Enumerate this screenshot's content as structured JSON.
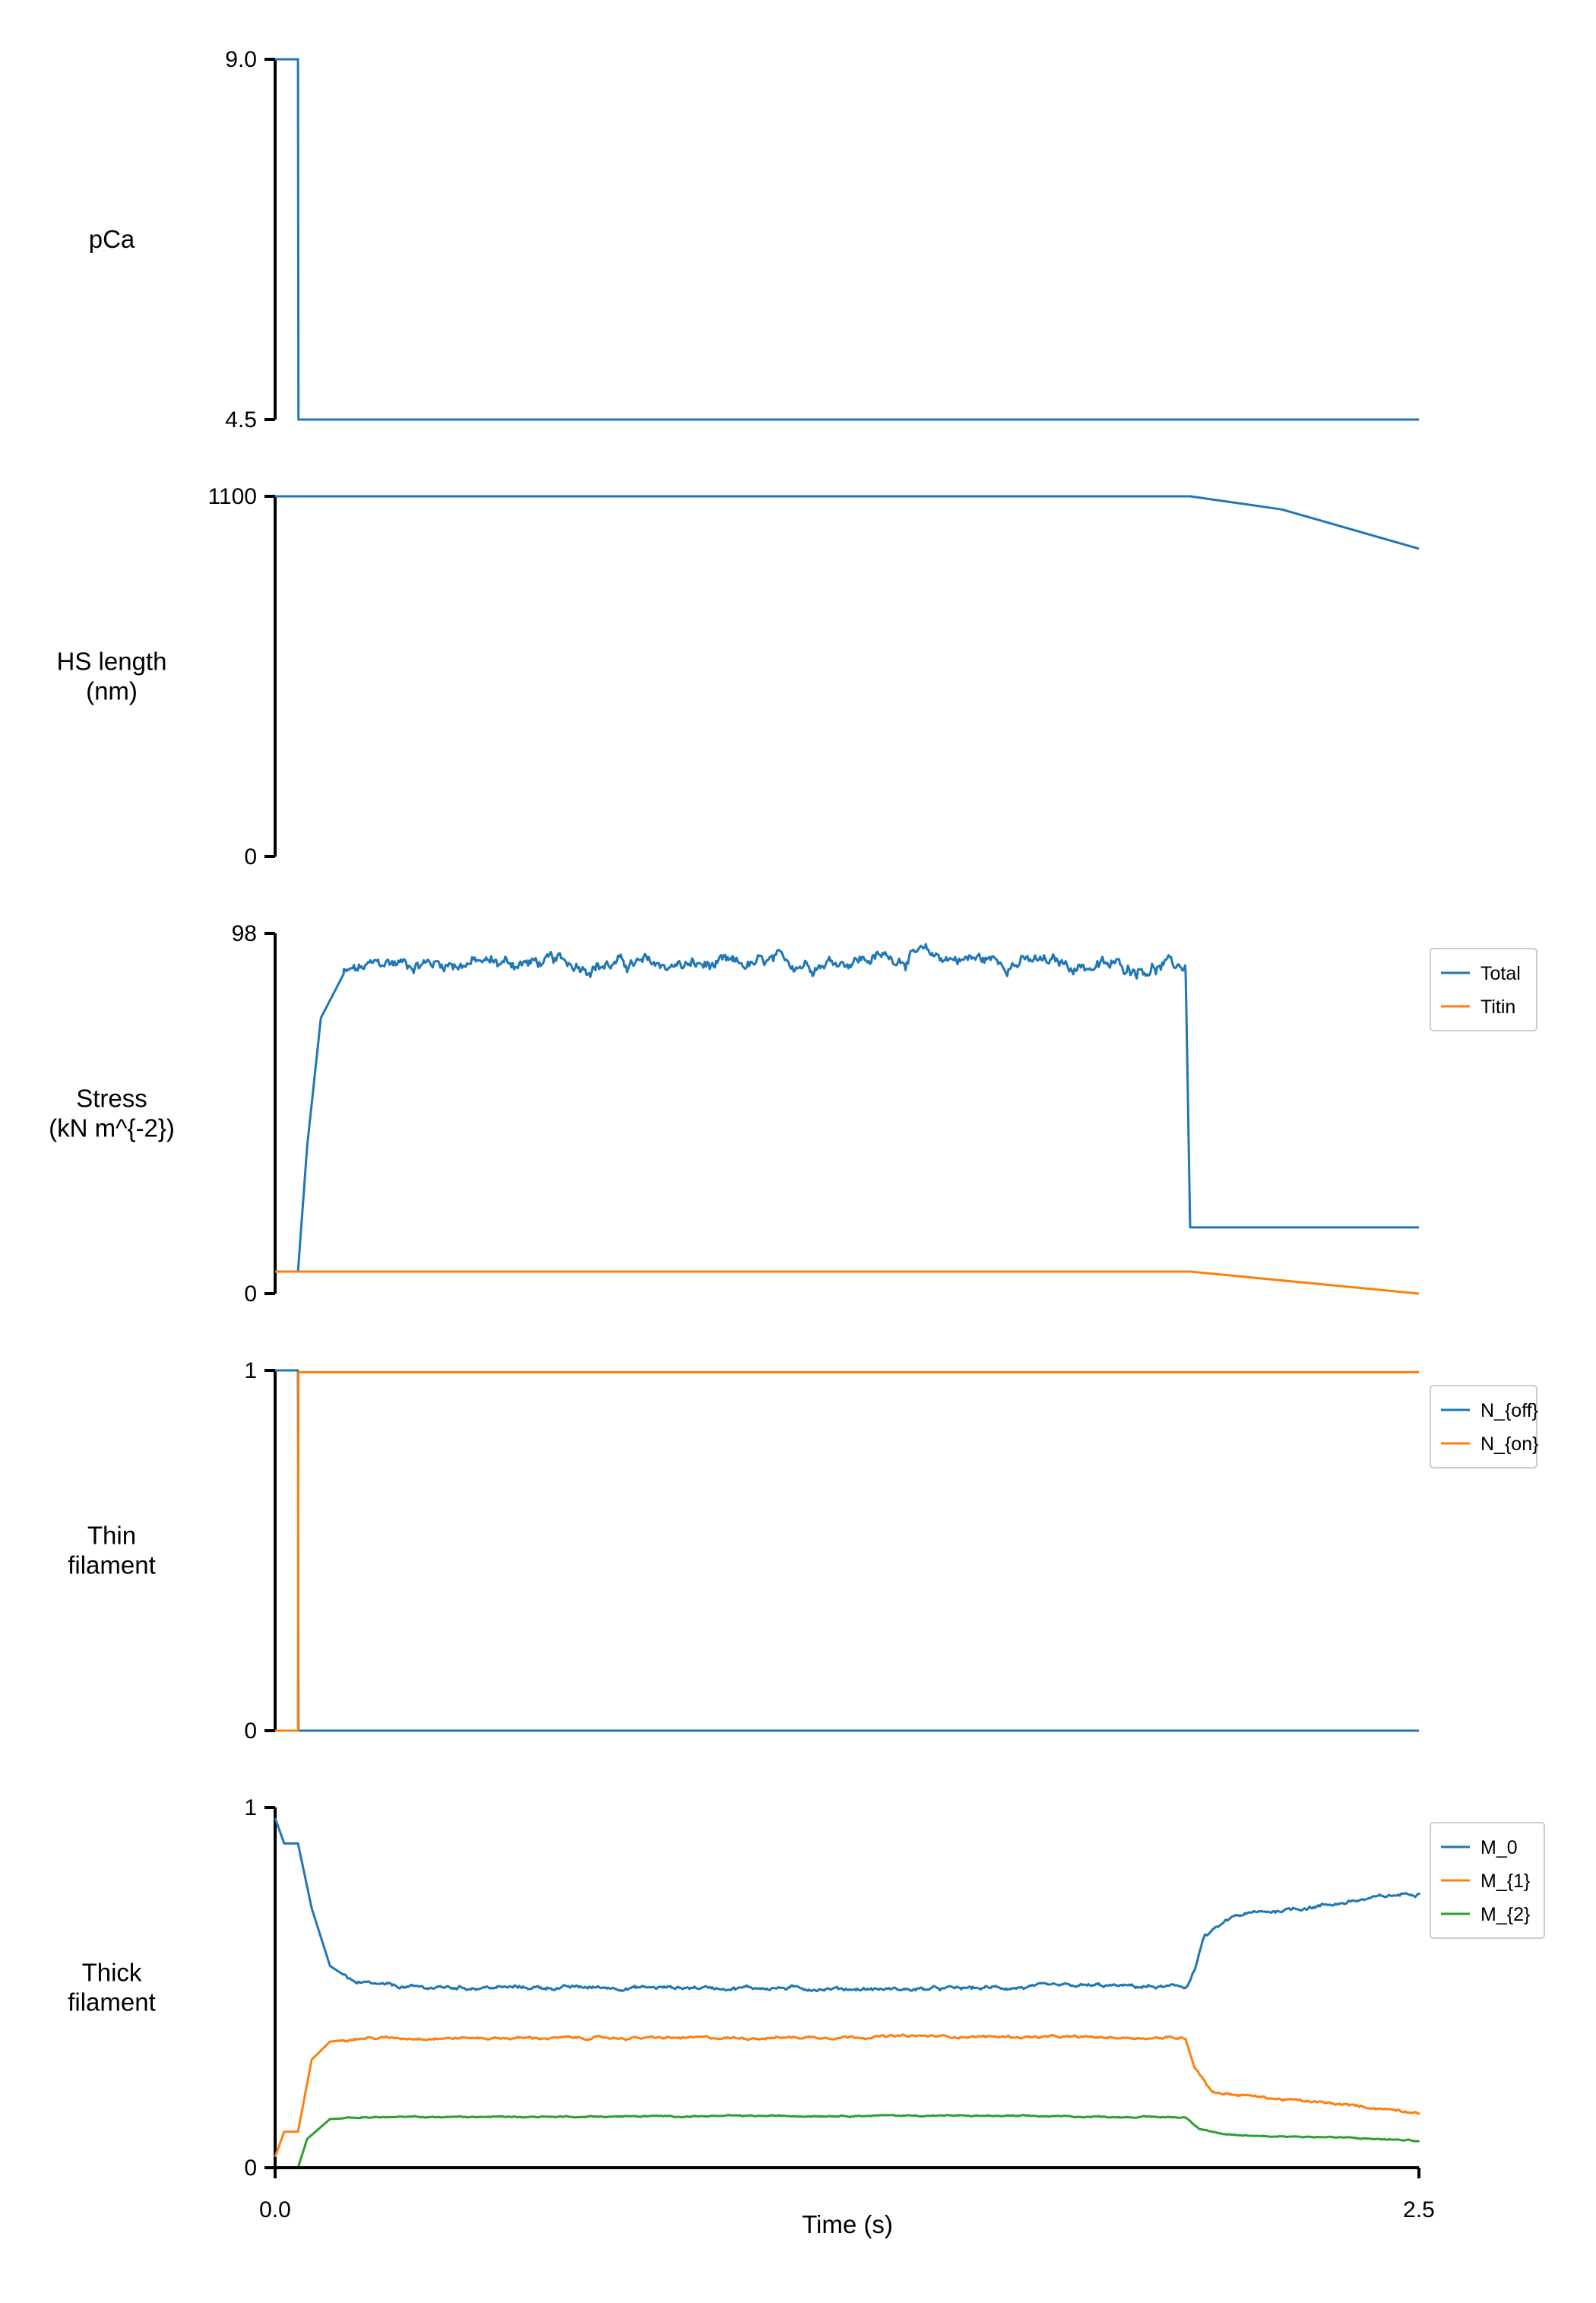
{
  "colors": {
    "blue": "#1f77b4",
    "orange": "#ff7f0e",
    "green": "#2ca02c",
    "axis": "#000000",
    "legend_border": "#cccccc"
  },
  "xaxis": {
    "label": "Time (s)",
    "range": [
      0.0,
      2.5
    ],
    "ticks": [
      "0.0",
      "2.5"
    ]
  },
  "chart_data": [
    {
      "type": "line",
      "ylabel_lines": [
        "pCa"
      ],
      "ylim": [
        4.5,
        9.0
      ],
      "yticks": [
        "9.0",
        "4.5"
      ],
      "legend": [],
      "series": [
        {
          "color": "#1f77b4",
          "noise": 0,
          "points": [
            [
              0.0,
              9.0
            ],
            [
              0.05,
              9.0
            ],
            [
              0.051,
              4.5
            ],
            [
              2.5,
              4.5
            ]
          ]
        }
      ]
    },
    {
      "type": "line",
      "ylabel_lines": [
        "HS length",
        "(nm)"
      ],
      "ylim": [
        0,
        1100
      ],
      "yticks": [
        "1100",
        "0"
      ],
      "legend": [],
      "series": [
        {
          "color": "#1f77b4",
          "noise": 0,
          "points": [
            [
              0.0,
              1100
            ],
            [
              2.0,
              1100
            ],
            [
              2.2,
              1060
            ],
            [
              2.5,
              940
            ]
          ]
        }
      ]
    },
    {
      "type": "line",
      "ylabel_lines": [
        "Stress",
        "(kN m^{-2})"
      ],
      "ylim": [
        0,
        98
      ],
      "yticks": [
        "98",
        "0"
      ],
      "legend": [
        "Total",
        "Titin"
      ],
      "series": [
        {
          "name": "Total",
          "color": "#1f77b4",
          "noise": 2.2,
          "noise_range": [
            0.15,
            1.99
          ],
          "points": [
            [
              0.0,
              6
            ],
            [
              0.05,
              6
            ],
            [
              0.07,
              40
            ],
            [
              0.1,
              75
            ],
            [
              0.15,
              87
            ],
            [
              0.25,
              90
            ],
            [
              0.6,
              90
            ],
            [
              1.0,
              89
            ],
            [
              1.4,
              92
            ],
            [
              1.8,
              89
            ],
            [
              1.99,
              89
            ],
            [
              2.0,
              18
            ],
            [
              2.5,
              18
            ]
          ]
        },
        {
          "name": "Titin",
          "color": "#ff7f0e",
          "noise": 0,
          "points": [
            [
              0.0,
              6
            ],
            [
              2.0,
              6
            ],
            [
              2.5,
              0
            ]
          ]
        }
      ]
    },
    {
      "type": "line",
      "ylabel_lines": [
        "Thin",
        "filament"
      ],
      "ylim": [
        0,
        1
      ],
      "yticks": [
        "1",
        "0"
      ],
      "legend": [
        "N_{off}",
        "N_{on}"
      ],
      "series": [
        {
          "name": "N_{off}",
          "color": "#1f77b4",
          "noise": 0,
          "points": [
            [
              0.0,
              1.0
            ],
            [
              0.05,
              1.0
            ],
            [
              0.051,
              0.0
            ],
            [
              2.5,
              0.0
            ]
          ]
        },
        {
          "name": "N_{on}",
          "color": "#ff7f0e",
          "noise": 0,
          "points": [
            [
              0.0,
              0.0
            ],
            [
              0.05,
              0.0
            ],
            [
              0.051,
              0.995
            ],
            [
              2.5,
              0.995
            ]
          ]
        }
      ]
    },
    {
      "type": "line",
      "ylabel_lines": [
        "Thick",
        "filament"
      ],
      "ylim": [
        0,
        1
      ],
      "yticks": [
        "1",
        "0"
      ],
      "legend": [
        "M_0",
        "M_{1}",
        "M_{2}"
      ],
      "series": [
        {
          "name": "M_0",
          "color": "#1f77b4",
          "noise": 0.006,
          "noise_range": [
            0.15,
            2.5
          ],
          "points": [
            [
              0.0,
              0.97
            ],
            [
              0.02,
              0.9
            ],
            [
              0.05,
              0.9
            ],
            [
              0.08,
              0.72
            ],
            [
              0.12,
              0.56
            ],
            [
              0.18,
              0.51
            ],
            [
              0.3,
              0.5
            ],
            [
              1.0,
              0.5
            ],
            [
              1.4,
              0.495
            ],
            [
              1.8,
              0.505
            ],
            [
              1.99,
              0.5
            ],
            [
              2.01,
              0.55
            ],
            [
              2.03,
              0.64
            ],
            [
              2.1,
              0.7
            ],
            [
              2.3,
              0.73
            ],
            [
              2.5,
              0.765
            ]
          ]
        },
        {
          "name": "M_{1}",
          "color": "#ff7f0e",
          "noise": 0.004,
          "noise_range": [
            0.15,
            2.5
          ],
          "points": [
            [
              0.0,
              0.03
            ],
            [
              0.02,
              0.1
            ],
            [
              0.05,
              0.1
            ],
            [
              0.08,
              0.3
            ],
            [
              0.12,
              0.35
            ],
            [
              0.2,
              0.36
            ],
            [
              1.0,
              0.36
            ],
            [
              1.4,
              0.365
            ],
            [
              1.99,
              0.36
            ],
            [
              2.01,
              0.28
            ],
            [
              2.05,
              0.21
            ],
            [
              2.2,
              0.19
            ],
            [
              2.5,
              0.155
            ]
          ]
        },
        {
          "name": "M_{2}",
          "color": "#2ca02c",
          "noise": 0.002,
          "noise_range": [
            0.15,
            2.5
          ],
          "points": [
            [
              0.0,
              0.0
            ],
            [
              0.05,
              0.0
            ],
            [
              0.07,
              0.08
            ],
            [
              0.12,
              0.135
            ],
            [
              0.2,
              0.14
            ],
            [
              1.4,
              0.145
            ],
            [
              1.99,
              0.14
            ],
            [
              2.02,
              0.11
            ],
            [
              2.08,
              0.09
            ],
            [
              2.3,
              0.085
            ],
            [
              2.5,
              0.075
            ]
          ]
        }
      ]
    }
  ]
}
